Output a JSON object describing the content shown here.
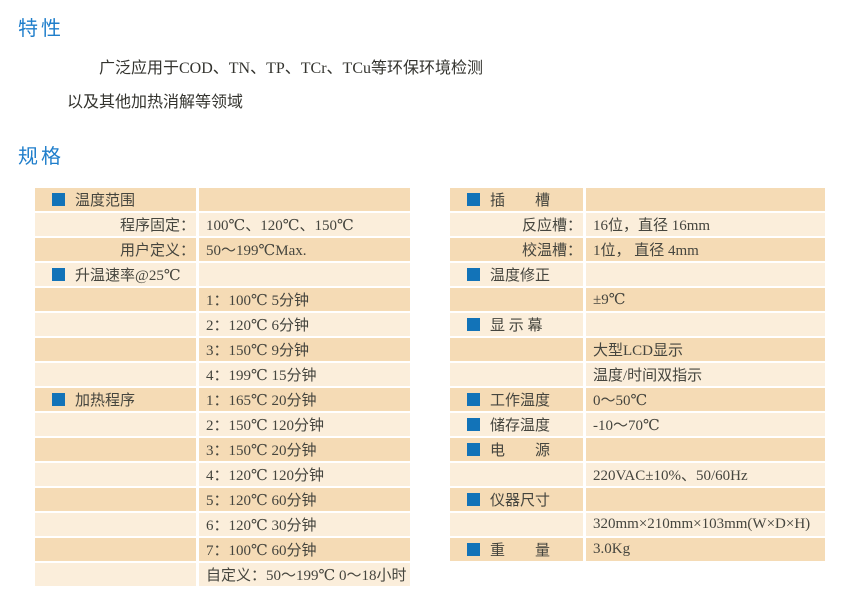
{
  "page": {
    "features_heading": "特性",
    "features_lines": [
      "广泛应用于COD、TN、TP、TCr、TCu等环保环境检测",
      "以及其他加热消解等领域"
    ],
    "specs_heading": "规格"
  },
  "colors": {
    "heading_blue": "#1f7ecb",
    "bullet_blue": "#1273b8",
    "row_dark_tan": "#f5dbb5",
    "row_light_cream": "#fbeedb",
    "table_text": "#45453e",
    "body_text": "#33332e",
    "background": "#ffffff"
  },
  "spec_tables": [
    {
      "name": "left",
      "rows": [
        {
          "label": "温度范围",
          "value": "",
          "header": true
        },
        {
          "label": "程序固定：",
          "value": "100℃、120℃、150℃",
          "header": false
        },
        {
          "label": "用户定义：",
          "value": "50～199℃Max.",
          "header": false
        },
        {
          "label": "升温速率@25℃",
          "value": "",
          "header": true
        },
        {
          "label": "",
          "value": "1：100℃ 5分钟",
          "header": false
        },
        {
          "label": "",
          "value": "2：120℃ 6分钟",
          "header": false
        },
        {
          "label": "",
          "value": "3：150℃ 9分钟",
          "header": false
        },
        {
          "label": "",
          "value": "4：199℃ 15分钟",
          "header": false
        },
        {
          "label": "加热程序",
          "value": "1：165℃ 20分钟",
          "header": true
        },
        {
          "label": "",
          "value": "2：150℃ 120分钟",
          "header": false
        },
        {
          "label": "",
          "value": "3：150℃ 20分钟",
          "header": false
        },
        {
          "label": "",
          "value": "4：120℃ 120分钟",
          "header": false
        },
        {
          "label": "",
          "value": "5：120℃ 60分钟",
          "header": false
        },
        {
          "label": "",
          "value": "6：120℃ 30分钟",
          "header": false
        },
        {
          "label": "",
          "value": "7：100℃ 60分钟",
          "header": false
        },
        {
          "label": "",
          "value": "自定义：50～199℃ 0～18小时",
          "header": false
        }
      ]
    },
    {
      "name": "right",
      "rows": [
        {
          "label": "插　　槽",
          "value": "",
          "header": true
        },
        {
          "label": "反应槽：",
          "value": "16位，直径 16mm",
          "header": false
        },
        {
          "label": "校温槽：",
          "value": "1位， 直径 4mm",
          "header": false
        },
        {
          "label": "温度修正",
          "value": "",
          "header": true
        },
        {
          "label": "",
          "value": "±9℃",
          "header": false
        },
        {
          "label": "显 示 幕",
          "value": "",
          "header": true
        },
        {
          "label": "",
          "value": "大型LCD显示",
          "header": false
        },
        {
          "label": "",
          "value": "温度/时间双指示",
          "header": false
        },
        {
          "label": "工作温度",
          "value": "0～50℃",
          "header": true
        },
        {
          "label": "储存温度",
          "value": "-10～70℃",
          "header": true
        },
        {
          "label": "电　　源",
          "value": "",
          "header": true
        },
        {
          "label": "",
          "value": "220VAC±10%、50/60Hz",
          "header": false
        },
        {
          "label": "仪器尺寸",
          "value": "",
          "header": true
        },
        {
          "label": "",
          "value": "320mm×210mm×103mm(W×D×H)",
          "header": false
        },
        {
          "label": "重　　量",
          "value": "3.0Kg",
          "header": true
        }
      ]
    }
  ]
}
